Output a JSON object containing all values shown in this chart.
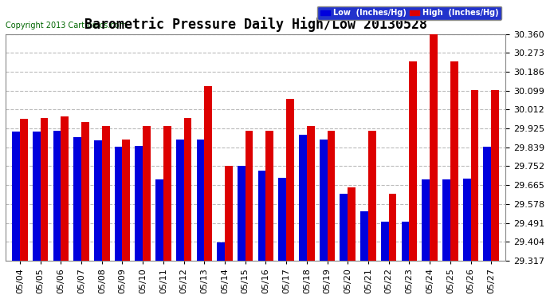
{
  "title": "Barometric Pressure Daily High/Low 20130528",
  "copyright": "Copyright 2013 Cartronics.com",
  "legend_low": "Low  (Inches/Hg)",
  "legend_high": "High  (Inches/Hg)",
  "dates": [
    "05/04",
    "05/05",
    "05/06",
    "05/07",
    "05/08",
    "05/09",
    "05/10",
    "05/11",
    "05/12",
    "05/13",
    "05/14",
    "05/15",
    "05/16",
    "05/17",
    "05/18",
    "05/19",
    "05/20",
    "05/21",
    "05/22",
    "05/23",
    "05/24",
    "05/25",
    "05/26",
    "05/27"
  ],
  "low_values": [
    29.91,
    29.91,
    29.915,
    29.885,
    29.87,
    29.84,
    29.845,
    29.69,
    29.875,
    29.875,
    29.4,
    29.755,
    29.73,
    29.7,
    29.895,
    29.875,
    29.625,
    29.545,
    29.495,
    29.495,
    29.69,
    29.69,
    29.695,
    29.84
  ],
  "high_values": [
    29.97,
    29.975,
    29.98,
    29.955,
    29.935,
    29.875,
    29.935,
    29.935,
    29.975,
    30.12,
    29.755,
    29.915,
    29.915,
    30.06,
    29.935,
    29.915,
    29.655,
    29.915,
    29.625,
    30.235,
    30.36,
    30.235,
    30.1,
    30.1
  ],
  "low_color": "#0000dd",
  "high_color": "#dd0000",
  "bg_color": "#ffffff",
  "plot_bg_color": "#ffffff",
  "grid_color": "#bbbbbb",
  "title_fontsize": 12,
  "tick_fontsize": 8,
  "ymin": 29.317,
  "ymax": 30.36,
  "yticks": [
    29.317,
    29.404,
    29.491,
    29.578,
    29.665,
    29.752,
    29.839,
    29.925,
    30.012,
    30.099,
    30.186,
    30.273,
    30.36
  ]
}
